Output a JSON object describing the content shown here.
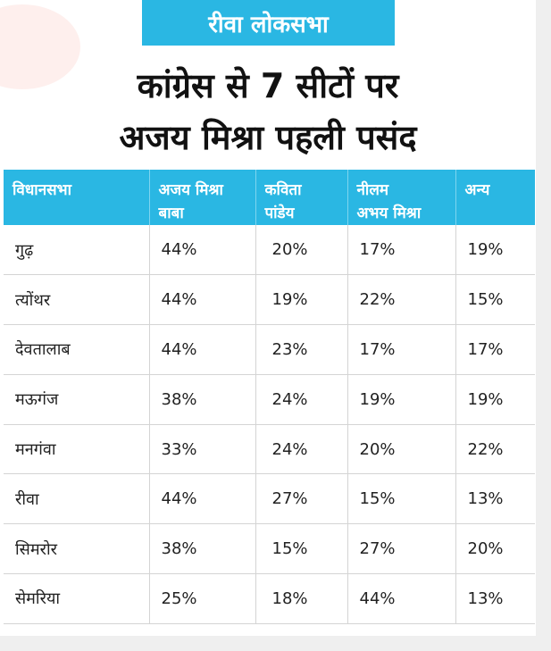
{
  "banner": "रीवा लोकसभा",
  "headline": {
    "line1": "कांग्रेस से 7 सीटों पर",
    "line2": "अजय मिश्रा पहली पसंद"
  },
  "colors": {
    "accent": "#2ab7e3",
    "text": "#111111"
  },
  "table": {
    "headers": [
      [
        "विधानसभा",
        ""
      ],
      [
        "अजय मिश्रा",
        "बाबा"
      ],
      [
        "कविता",
        "पांडेय"
      ],
      [
        "नीलम",
        "अभय मिश्रा"
      ],
      [
        "अन्य",
        ""
      ]
    ],
    "rows": [
      [
        "गुढ़",
        "44%",
        "20%",
        "17%",
        "19%"
      ],
      [
        "त्योंथर",
        "44%",
        "19%",
        "22%",
        "15%"
      ],
      [
        "देवतालाब",
        "44%",
        "23%",
        "17%",
        "17%"
      ],
      [
        "मऊगंज",
        "38%",
        "24%",
        "19%",
        "19%"
      ],
      [
        "मनगंवा",
        "33%",
        "24%",
        "20%",
        "22%"
      ],
      [
        "रीवा",
        "44%",
        "27%",
        "15%",
        "13%"
      ],
      [
        "सिमरोर",
        "38%",
        "15%",
        "27%",
        "20%"
      ],
      [
        "सेमरिया",
        "25%",
        "18%",
        "44%",
        "13%"
      ]
    ]
  }
}
